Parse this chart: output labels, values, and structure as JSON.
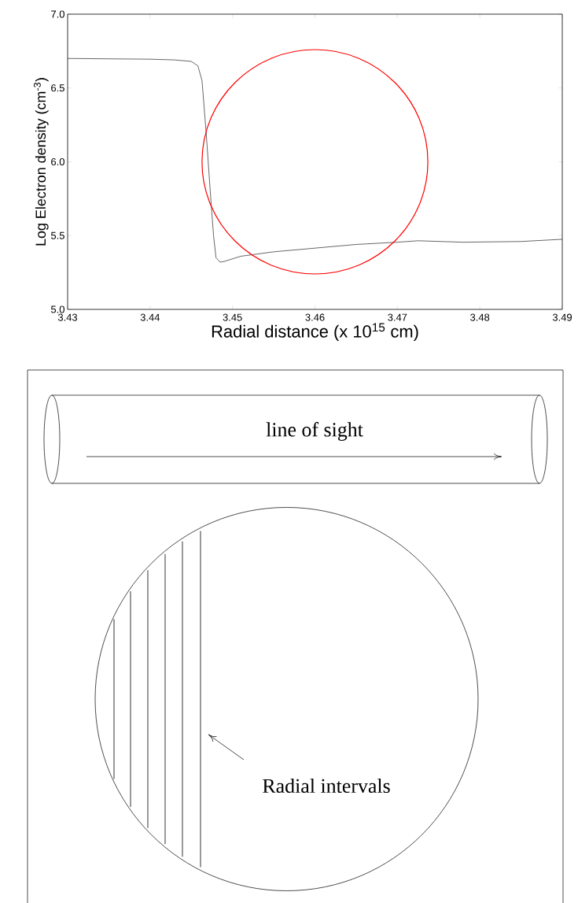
{
  "chart_data": [
    {
      "type": "line",
      "xlabel": "Radial distance (x 10$^{15}$ cm)",
      "ylabel": "Log Electron density (cm$^{-3}$)",
      "xlim": [
        3.43,
        3.49
      ],
      "ylim": [
        5.0,
        7.0
      ],
      "xticks": [
        3.43,
        3.44,
        3.45,
        3.46,
        3.47,
        3.48,
        3.49
      ],
      "yticks": [
        {
          "value": 5.0,
          "label": "5.0"
        },
        {
          "value": 5.5,
          "label": "5.5"
        },
        {
          "value": 6.0,
          "label": "6.0"
        },
        {
          "value": 6.5,
          "label": "6.5"
        },
        {
          "value": 7.0,
          "label": "7.0"
        }
      ],
      "series": [
        {
          "color": "#000000",
          "x": [
            3.43,
            3.44,
            3.443,
            3.445,
            3.4458,
            3.4463,
            3.4468,
            3.4473,
            3.4477,
            3.448,
            3.4485,
            3.449,
            3.451,
            3.455,
            3.46,
            3.465,
            3.47,
            3.4725,
            3.478,
            3.485,
            3.49
          ],
          "values": [
            6.7,
            6.695,
            6.69,
            6.68,
            6.65,
            6.55,
            6.2,
            5.8,
            5.5,
            5.35,
            5.32,
            5.325,
            5.36,
            5.39,
            5.415,
            5.44,
            5.455,
            5.465,
            5.455,
            5.46,
            5.475
          ]
        }
      ]
    },
    {
      "type": "other",
      "annotations": [
        "line of sight",
        "Radial intervals"
      ]
    }
  ]
}
